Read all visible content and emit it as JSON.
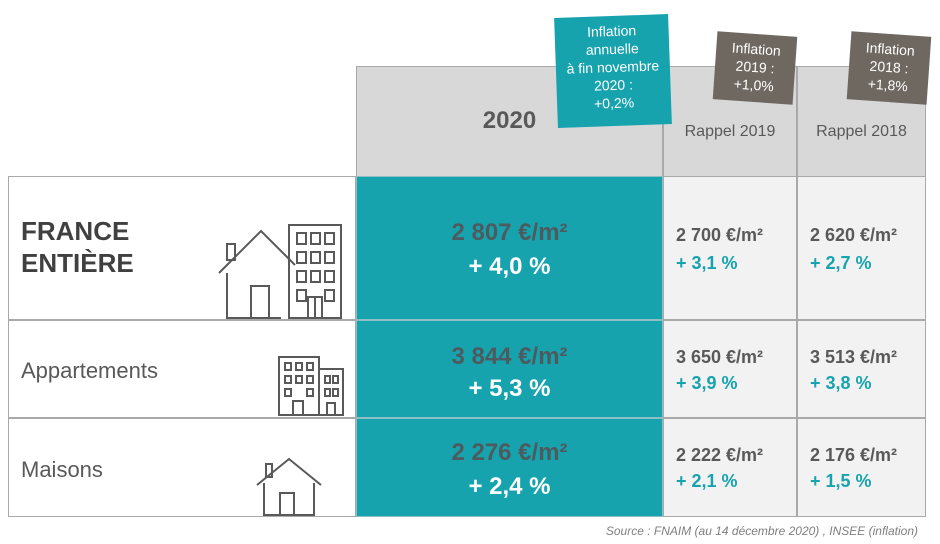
{
  "header": {
    "col_2020": "2020",
    "col_2019": "Rappel 2019",
    "col_2018": "Rappel 2018"
  },
  "notes": {
    "teal": [
      "Inflation",
      "annuelle",
      "à fin novembre",
      "2020 :",
      "+0,2%"
    ],
    "brown_2019": [
      "Inflation",
      "2019 :",
      "+1,0%"
    ],
    "brown_2018": [
      "Inflation",
      "2018 :",
      "+1,8%"
    ]
  },
  "rows": [
    {
      "label_lines": [
        "FRANCE",
        "ENTIÈRE"
      ],
      "price_2020": "2 807 €/m²",
      "pct_2020": "+ 4,0 %",
      "price_2019": "2 700 €/m²",
      "pct_2019": "+ 3,1 %",
      "price_2018": "2 620 €/m²",
      "pct_2018": "+ 2,7 %",
      "icon": "house-and-building-icon"
    },
    {
      "label": "Appartements",
      "price_2020": "3 844 €/m²",
      "pct_2020": "+ 5,3 %",
      "price_2019": "3 650 €/m²",
      "pct_2019": "+ 3,9 %",
      "price_2018": "3 513 €/m²",
      "pct_2018": "+ 3,8 %",
      "icon": "apartment-buildings-icon"
    },
    {
      "label": "Maisons",
      "price_2020": "2 276 €/m²",
      "pct_2020": "+ 2,4 %",
      "price_2019": "2 222 €/m²",
      "pct_2019": "+ 2,1 %",
      "price_2018": "2 176 €/m²",
      "pct_2018": "+ 1,5 %",
      "icon": "house-icon"
    }
  ],
  "source": "Source : FNAIM (au 14 décembre 2020) , INSEE (inflation)",
  "colors": {
    "teal": "#17a3ae",
    "brown": "#6f6861",
    "header_grey": "#d8d8d8",
    "cell_grey": "#f2f2f2"
  }
}
